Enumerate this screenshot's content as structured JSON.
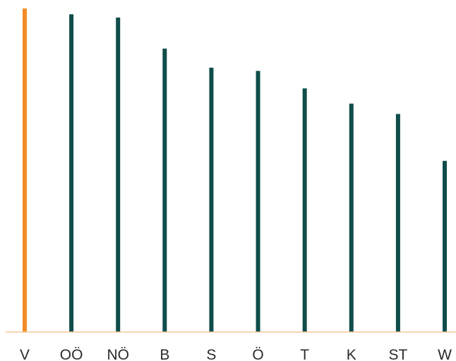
{
  "chart_data": {
    "type": "bar",
    "categories": [
      "V",
      "OÖ",
      "NÖ",
      "B",
      "S",
      "Ö",
      "T",
      "K",
      "ST",
      "W"
    ],
    "values": [
      100,
      98.2,
      97.2,
      87.6,
      81.7,
      80.7,
      75.3,
      70.6,
      67.4,
      52.9
    ],
    "ylim": [
      0,
      100
    ],
    "grid": false,
    "legend": "none",
    "colors": {
      "default": "#0e4d4a",
      "highlight": "#f28c28",
      "baseline": "#f3c79b"
    },
    "highlight_index": 0
  }
}
